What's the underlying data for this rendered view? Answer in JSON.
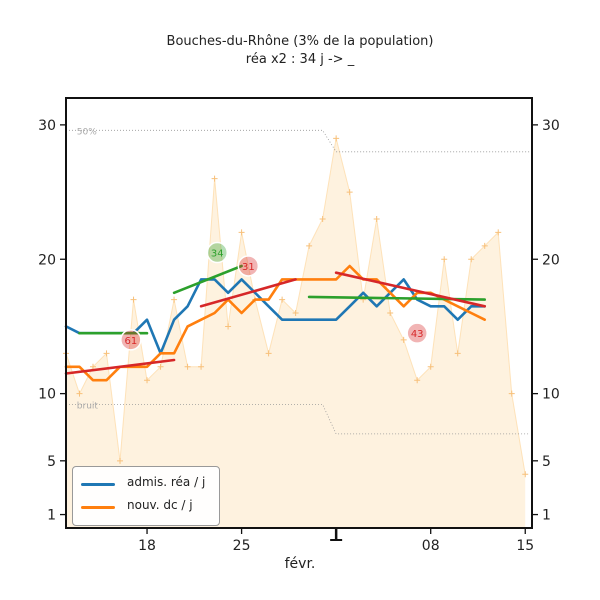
{
  "chart_data": {
    "type": "line",
    "title": "Bouches-du-Rhône (3% de la population)",
    "subtitle": "réa x2 : 34 j -> _",
    "xlabel": "févr.",
    "ylabel": "",
    "y_ticks": [
      1,
      5,
      10,
      20,
      30
    ],
    "ylim": [
      0,
      32
    ],
    "x_ticks": [
      {
        "day": 18,
        "label": "18"
      },
      {
        "day": 25,
        "label": "25"
      },
      {
        "day": 39,
        "label": "08"
      },
      {
        "day": 46,
        "label": "15"
      }
    ],
    "x_marker_day": 32,
    "xlim": [
      12,
      46.5
    ],
    "threshold_labels": {
      "upper": "50%",
      "lower": "bruit"
    },
    "threshold_upper": [
      [
        12,
        29.6
      ],
      [
        31,
        29.6
      ],
      [
        32,
        28.0
      ],
      [
        46.3,
        28.0
      ]
    ],
    "threshold_lower": [
      [
        12,
        9.2
      ],
      [
        31,
        9.2
      ],
      [
        32,
        7.0
      ],
      [
        46.3,
        7.0
      ]
    ],
    "series": [
      {
        "name": "admis. réa / j",
        "color": "#1f77b4",
        "x": [
          12,
          13,
          14,
          15,
          16,
          17,
          18,
          19,
          20,
          21,
          22,
          23,
          24,
          25,
          26,
          27,
          28,
          29,
          30,
          32,
          33,
          34,
          35,
          36,
          37,
          38,
          39,
          40,
          41,
          42,
          43
        ],
        "y": [
          15,
          14.5,
          14.5,
          14.5,
          14.5,
          14.5,
          15.5,
          13,
          15.5,
          16.5,
          18.5,
          18.5,
          17.5,
          18.5,
          17.5,
          16.5,
          15.5,
          15.5,
          15.5,
          15.5,
          16.5,
          17.5,
          16.5,
          17.5,
          18.5,
          17,
          16.5,
          16.5,
          15.5,
          16.5,
          16.5
        ]
      },
      {
        "name": "nouv. dc / j",
        "color": "#ff7f0e",
        "x": [
          12,
          13,
          14,
          15,
          16,
          17,
          18,
          19,
          20,
          21,
          22,
          23,
          24,
          25,
          26,
          27,
          28,
          29,
          30,
          32,
          33,
          34,
          35,
          36,
          37,
          38,
          39,
          40,
          41,
          42,
          43
        ],
        "y": [
          12,
          12,
          11,
          11,
          12,
          12,
          12,
          13,
          13,
          15,
          15.5,
          16,
          17,
          16,
          17,
          17,
          18.5,
          18.5,
          18.5,
          18.5,
          19.5,
          18.5,
          18.5,
          17.5,
          16.5,
          17.5,
          17.5,
          17,
          16.5,
          16,
          15.5
        ]
      }
    ],
    "trend_lines": [
      {
        "color": "#2ca02c",
        "points": [
          [
            13,
            14.5
          ],
          [
            18,
            14.5
          ]
        ]
      },
      {
        "color": "#2ca02c",
        "points": [
          [
            20,
            17.5
          ],
          [
            25,
            19.5
          ]
        ]
      },
      {
        "color": "#2ca02c",
        "points": [
          [
            30,
            17.2
          ],
          [
            43,
            17.0
          ]
        ]
      },
      {
        "color": "#d62728",
        "points": [
          [
            12,
            11.5
          ],
          [
            20,
            12.5
          ]
        ]
      },
      {
        "color": "#d62728",
        "points": [
          [
            22,
            16.5
          ],
          [
            29,
            18.5
          ]
        ]
      },
      {
        "color": "#d62728",
        "points": [
          [
            32,
            19.0
          ],
          [
            43,
            16.5
          ]
        ]
      }
    ],
    "badges": [
      {
        "text": "34",
        "color": "#2ca02c",
        "x": 23.2,
        "y": 20.5
      },
      {
        "text": "31",
        "color": "#d62728",
        "x": 25.5,
        "y": 19.5
      },
      {
        "text": "61",
        "color": "#d62728",
        "x": 16.8,
        "y": 14.0
      },
      {
        "text": "43",
        "color": "#d62728",
        "x": 38.0,
        "y": 14.5
      }
    ],
    "background_series": {
      "color": "#fdd9a3",
      "x": [
        12,
        13,
        14,
        15,
        16,
        17,
        18,
        19,
        20,
        21,
        22,
        23,
        24,
        25,
        26,
        27,
        28,
        29,
        30,
        31,
        32,
        33,
        34,
        35,
        36,
        37,
        38,
        39,
        40,
        41,
        42,
        43,
        44,
        45,
        46
      ],
      "y": [
        13,
        10,
        12,
        13,
        5,
        17,
        11,
        12,
        17,
        12,
        12,
        26,
        15,
        22,
        17,
        13,
        17,
        16,
        21,
        23,
        29,
        25,
        17,
        23,
        16,
        14,
        11,
        12,
        20,
        13,
        20,
        21,
        22,
        10,
        4
      ]
    },
    "legend": {
      "position": "bottom-left",
      "entries": [
        "admis. réa / j",
        "nouv. dc / j"
      ]
    },
    "grid": false
  }
}
